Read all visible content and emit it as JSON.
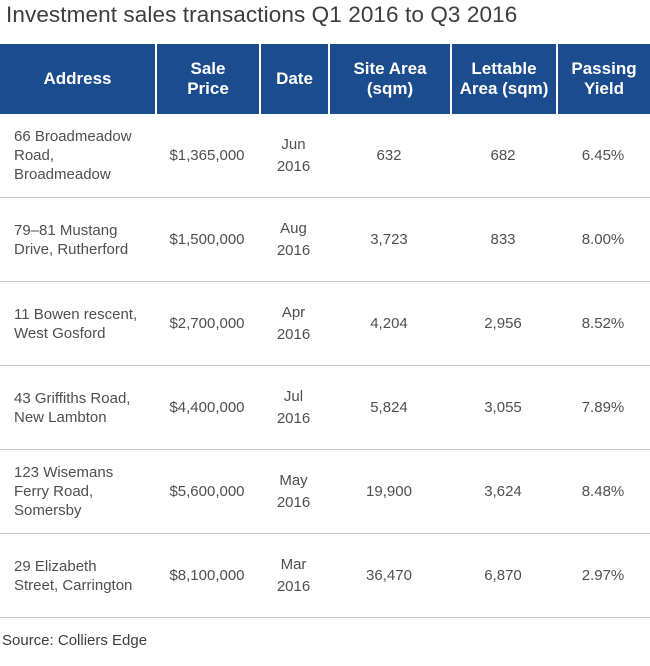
{
  "title": "Investment sales transactions Q1 2016 to Q3 2016",
  "columns": [
    [
      "Address"
    ],
    [
      "Sale",
      "Price"
    ],
    [
      "Date"
    ],
    [
      "Site Area",
      "(sqm)"
    ],
    [
      "Lettable",
      "Area (sqm)"
    ],
    [
      "Passing",
      "Yield"
    ]
  ],
  "rows": [
    {
      "address": [
        "66 Broadmeadow",
        "Road,",
        "Broadmeadow"
      ],
      "price": "$1,365,000",
      "date": [
        "Jun",
        "2016"
      ],
      "site_area": "632",
      "lettable_area": "682",
      "yield": "6.45%"
    },
    {
      "address": [
        "79–81 Mustang",
        "Drive, Rutherford"
      ],
      "price": "$1,500,000",
      "date": [
        "Aug",
        "2016"
      ],
      "site_area": "3,723",
      "lettable_area": "833",
      "yield": "8.00%"
    },
    {
      "address": [
        "11 Bowen rescent,",
        "West Gosford"
      ],
      "price": "$2,700,000",
      "date": [
        "Apr",
        "2016"
      ],
      "site_area": "4,204",
      "lettable_area": "2,956",
      "yield": "8.52%"
    },
    {
      "address": [
        "43 Griffiths Road,",
        "New Lambton"
      ],
      "price": "$4,400,000",
      "date": [
        "Jul",
        "2016"
      ],
      "site_area": "5,824",
      "lettable_area": "3,055",
      "yield": "7.89%"
    },
    {
      "address": [
        "123 Wisemans",
        "Ferry Road,",
        "Somersby"
      ],
      "price": "$5,600,000",
      "date": [
        "May",
        "2016"
      ],
      "site_area": "19,900",
      "lettable_area": "3,624",
      "yield": "8.48%"
    },
    {
      "address": [
        "29 Elizabeth",
        "Street, Carrington"
      ],
      "price": "$8,100,000",
      "date": [
        "Mar",
        "2016"
      ],
      "site_area": "36,470",
      "lettable_area": "6,870",
      "yield": "2.97%"
    }
  ],
  "source": "Source: Colliers Edge",
  "colors": {
    "header_bg": "#1b4c8e",
    "header_text": "#ffffff",
    "body_text": "#4f4f4f",
    "row_divider": "#c8c8c8"
  }
}
